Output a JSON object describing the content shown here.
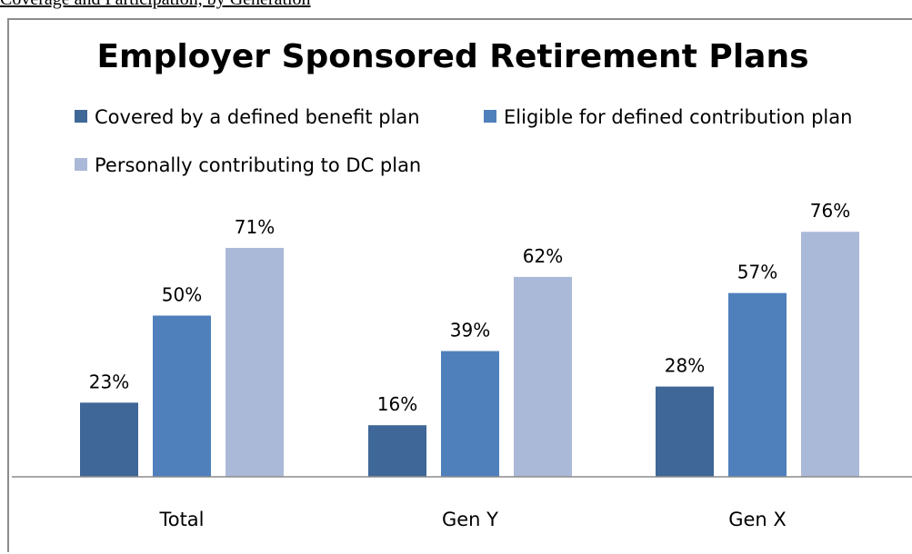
{
  "caption": "Coverage and Participation, by Generation",
  "chart_data": {
    "type": "bar",
    "title": "Employer Sponsored Retirement Plans",
    "categories": [
      "Total",
      "Gen Y",
      "Gen X"
    ],
    "series": [
      {
        "name": "Covered by a defined benefit plan",
        "values": [
          23,
          16,
          28
        ],
        "color": "#3f6797"
      },
      {
        "name": "Eligible for defined contribution plan",
        "values": [
          50,
          39,
          57
        ],
        "color": "#4f80bc"
      },
      {
        "name": "Personally contributing to DC plan",
        "values": [
          71,
          62,
          76
        ],
        "color": "#abb9d8"
      }
    ],
    "value_suffix": "%",
    "ylim": [
      0,
      100
    ],
    "grid": false,
    "legend": "top"
  }
}
